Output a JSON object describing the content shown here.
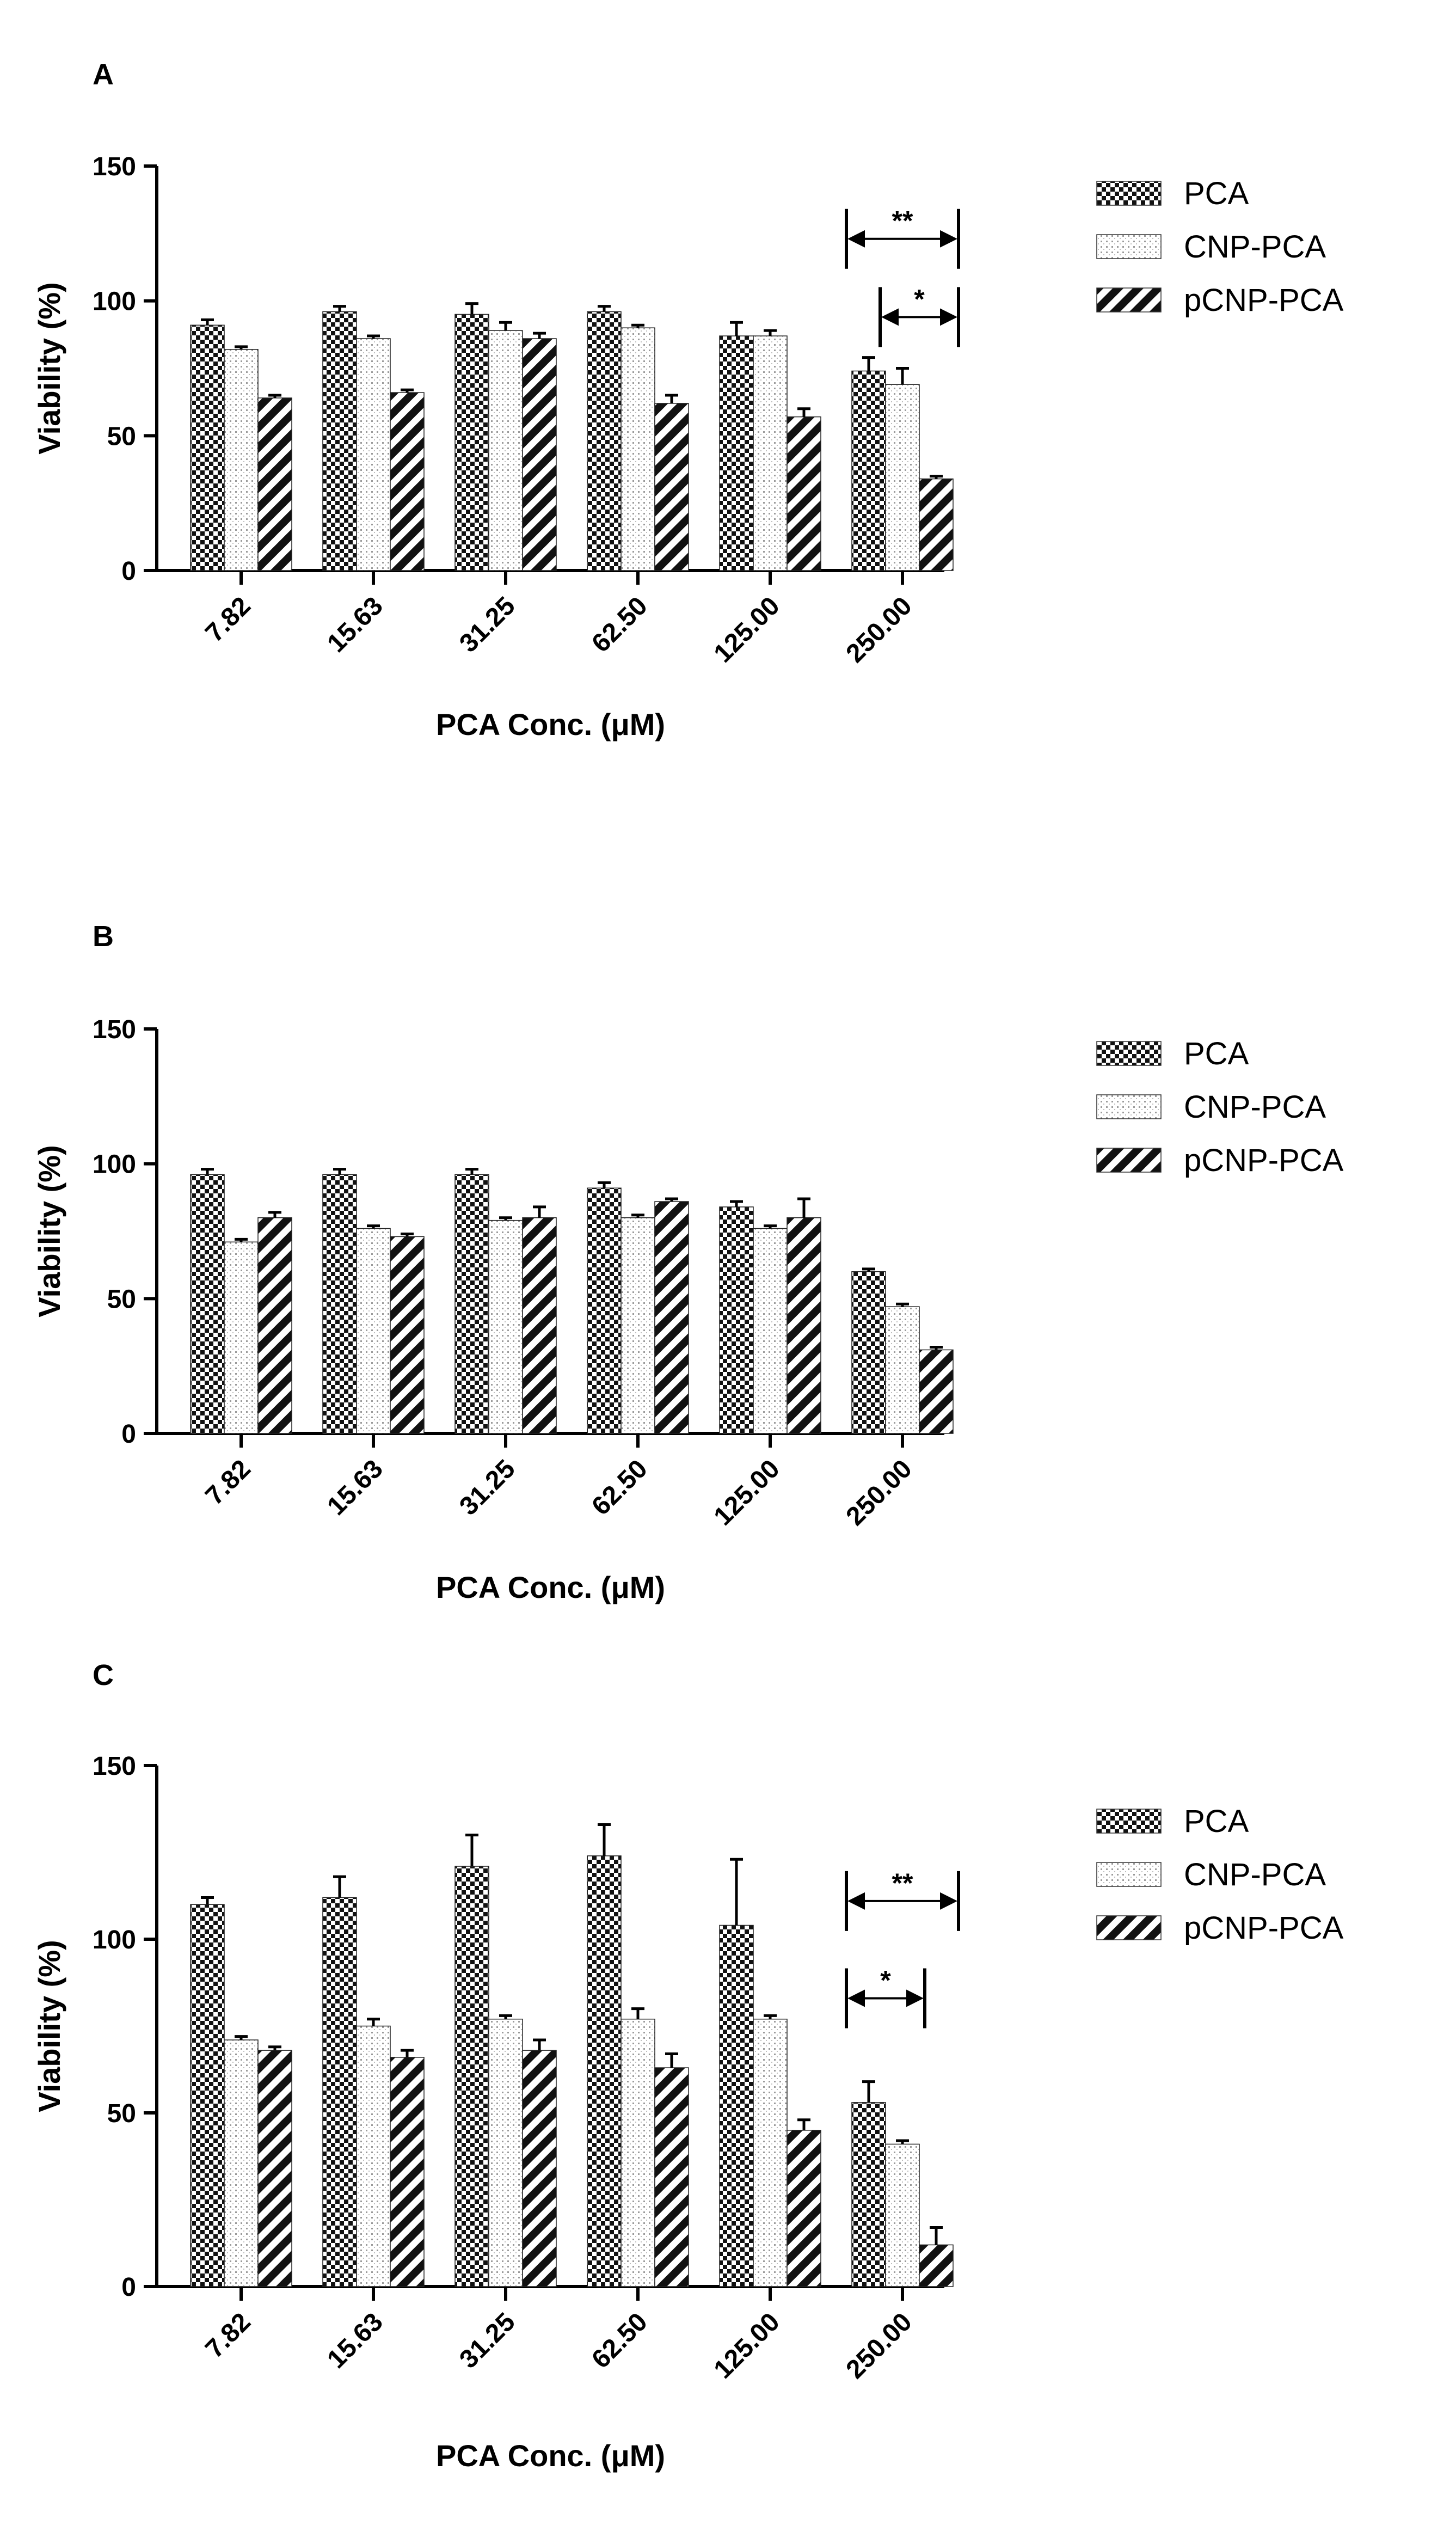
{
  "colors": {
    "axis": "#000000",
    "background": "#ffffff"
  },
  "chart_data": [
    {
      "type": "bar",
      "panel": "A",
      "categories": [
        "7.82",
        "15.63",
        "31.25",
        "62.50",
        "125.00",
        "250.00"
      ],
      "series": [
        {
          "name": "PCA",
          "pattern": "checker",
          "values": [
            91,
            96,
            95,
            96,
            87,
            74
          ],
          "errors": [
            2,
            2,
            4,
            2,
            5,
            5
          ]
        },
        {
          "name": "CNP-PCA",
          "pattern": "dots",
          "values": [
            82,
            86,
            89,
            90,
            87,
            69
          ],
          "errors": [
            1,
            1,
            3,
            1,
            2,
            6
          ]
        },
        {
          "name": "pCNP-PCA",
          "pattern": "diagonal",
          "values": [
            64,
            66,
            86,
            62,
            57,
            34
          ],
          "errors": [
            1,
            1,
            2,
            3,
            3,
            1
          ]
        }
      ],
      "xlabel": "PCA Conc. (μM)",
      "ylabel": "Viability (%)",
      "ylim": [
        0,
        150
      ],
      "yticks": [
        0,
        50,
        100,
        150
      ],
      "significance": [
        {
          "label": "**",
          "from_series": 0,
          "to_series": 2,
          "category": 5,
          "level": 123
        },
        {
          "label": "*",
          "from_series": 1,
          "to_series": 2,
          "category": 5,
          "level": 94
        }
      ]
    },
    {
      "type": "bar",
      "panel": "B",
      "categories": [
        "7.82",
        "15.63",
        "31.25",
        "62.50",
        "125.00",
        "250.00"
      ],
      "series": [
        {
          "name": "PCA",
          "pattern": "checker",
          "values": [
            96,
            96,
            96,
            91,
            84,
            60
          ],
          "errors": [
            2,
            2,
            2,
            2,
            2,
            1
          ]
        },
        {
          "name": "CNP-PCA",
          "pattern": "dots",
          "values": [
            71,
            76,
            79,
            80,
            76,
            47
          ],
          "errors": [
            1,
            1,
            1,
            1,
            1,
            1
          ]
        },
        {
          "name": "pCNP-PCA",
          "pattern": "diagonal",
          "values": [
            80,
            73,
            80,
            86,
            80,
            31
          ],
          "errors": [
            2,
            1,
            4,
            1,
            7,
            1
          ]
        }
      ],
      "xlabel": "PCA Conc. (μM)",
      "ylabel": "Viability (%)",
      "ylim": [
        0,
        150
      ],
      "yticks": [
        0,
        50,
        100,
        150
      ],
      "significance": []
    },
    {
      "type": "bar",
      "panel": "C",
      "categories": [
        "7.82",
        "15.63",
        "31.25",
        "62.50",
        "125.00",
        "250.00"
      ],
      "series": [
        {
          "name": "PCA",
          "pattern": "checker",
          "values": [
            110,
            112,
            121,
            124,
            104,
            53
          ],
          "errors": [
            2,
            6,
            9,
            9,
            19,
            6
          ]
        },
        {
          "name": "CNP-PCA",
          "pattern": "dots",
          "values": [
            71,
            75,
            77,
            77,
            77,
            41
          ],
          "errors": [
            1,
            2,
            1,
            3,
            1,
            1
          ]
        },
        {
          "name": "pCNP-PCA",
          "pattern": "diagonal",
          "values": [
            68,
            66,
            68,
            63,
            45,
            12
          ],
          "errors": [
            1,
            2,
            3,
            4,
            3,
            5
          ]
        }
      ],
      "xlabel": "PCA Conc. (μM)",
      "ylabel": "Viability (%)",
      "ylim": [
        0,
        150
      ],
      "yticks": [
        0,
        50,
        100,
        150
      ],
      "significance": [
        {
          "label": "**",
          "from_series": 0,
          "to_series": 2,
          "category": 5,
          "level": 111
        },
        {
          "label": "*",
          "from_series": 0,
          "to_series": 1,
          "category": 5,
          "level": 83
        }
      ]
    }
  ]
}
